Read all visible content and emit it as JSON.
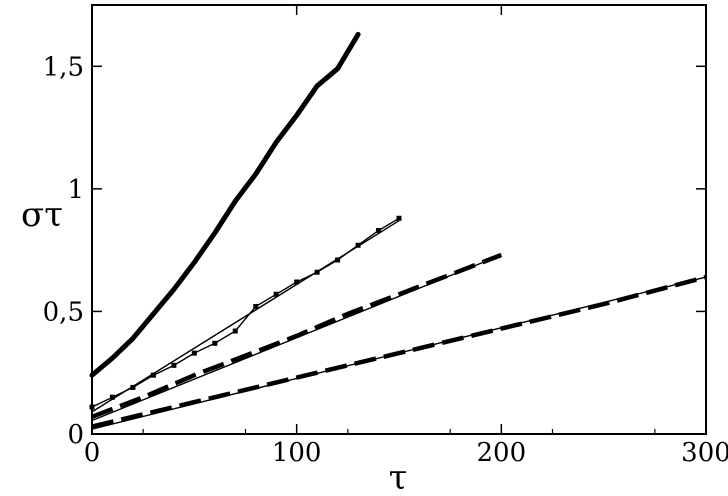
{
  "chart_data": {
    "type": "line",
    "title": "",
    "xlabel": "τ",
    "ylabel": "στ",
    "xlim": [
      0,
      300
    ],
    "ylim": [
      0,
      1.75
    ],
    "xticks": [
      0,
      100,
      200,
      300
    ],
    "xtick_labels": [
      "0",
      "100",
      "200",
      "300"
    ],
    "yticks": [
      0,
      0.5,
      1,
      1.5
    ],
    "ytick_labels": [
      "0",
      "0,5",
      "1",
      "1,5"
    ],
    "grid": false,
    "legend": "none",
    "colors": {
      "ink": "#000000",
      "background": "#ffffff"
    },
    "series": [
      {
        "style": "thick-solid",
        "x": [
          0,
          10,
          20,
          30,
          40,
          50,
          60,
          70,
          80,
          90,
          100,
          110,
          120,
          130
        ],
        "y": [
          0.24,
          0.31,
          0.39,
          0.49,
          0.59,
          0.7,
          0.82,
          0.95,
          1.06,
          1.19,
          1.3,
          1.42,
          1.49,
          1.63
        ]
      },
      {
        "style": "thin-with-markers",
        "x": [
          0,
          10,
          20,
          30,
          40,
          50,
          60,
          70,
          80,
          90,
          100,
          110,
          120,
          130,
          140,
          150
        ],
        "y": [
          0.11,
          0.15,
          0.19,
          0.24,
          0.28,
          0.33,
          0.37,
          0.42,
          0.52,
          0.57,
          0.62,
          0.66,
          0.71,
          0.77,
          0.83,
          0.88
        ]
      },
      {
        "style": "thick-dashed",
        "x": [
          0,
          25,
          50,
          75,
          100,
          125,
          150,
          175,
          200
        ],
        "y": [
          0.07,
          0.15,
          0.24,
          0.32,
          0.4,
          0.49,
          0.57,
          0.65,
          0.73
        ]
      },
      {
        "style": "thick-dashed",
        "x": [
          0,
          50,
          100,
          150,
          200,
          250,
          300
        ],
        "y": [
          0.03,
          0.13,
          0.23,
          0.33,
          0.43,
          0.53,
          0.64
        ]
      }
    ],
    "fit_lines": [
      {
        "x": [
          0,
          150
        ],
        "y": [
          0.09,
          0.87
        ]
      },
      {
        "x": [
          0,
          200
        ],
        "y": [
          0.055,
          0.73
        ]
      },
      {
        "x": [
          0,
          300
        ],
        "y": [
          0.02,
          0.64
        ]
      }
    ]
  }
}
